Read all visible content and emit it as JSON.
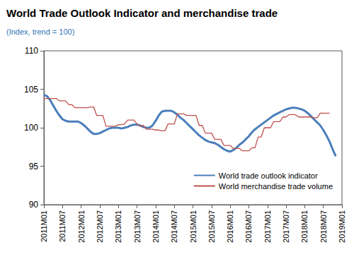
{
  "chart_data": {
    "type": "line",
    "title": "World Trade Outlook Indicator and merchandise trade",
    "subtitle": "(Index, trend = 100)",
    "categories": [
      "2011M01",
      null,
      null,
      null,
      null,
      null,
      "2011M07",
      null,
      null,
      null,
      null,
      null,
      "2012M01",
      null,
      null,
      null,
      null,
      null,
      "2012M07",
      null,
      null,
      null,
      null,
      null,
      "2013M01",
      null,
      null,
      null,
      null,
      null,
      "2013M07",
      null,
      null,
      null,
      null,
      null,
      "2014M01",
      null,
      null,
      null,
      null,
      null,
      "2014M07",
      null,
      null,
      null,
      null,
      null,
      "2015M01",
      null,
      null,
      null,
      null,
      null,
      "2015M07",
      null,
      null,
      null,
      null,
      null,
      "2016M01",
      null,
      null,
      null,
      null,
      null,
      "2016M07",
      null,
      null,
      null,
      null,
      null,
      "2017M01",
      null,
      null,
      null,
      null,
      null,
      "2017M07",
      null,
      null,
      null,
      null,
      null,
      "2018M01",
      null,
      null,
      null,
      null,
      null,
      "2018M07",
      null,
      null,
      null,
      null,
      null,
      "2019M01"
    ],
    "series": [
      {
        "name": "World trade outlook indicator",
        "color": "#4a7ebb",
        "values": [
          104.3,
          104.1,
          103.6,
          102.9,
          102.2,
          101.6,
          101.1,
          100.9,
          100.8,
          100.8,
          100.8,
          100.8,
          100.6,
          100.3,
          99.9,
          99.5,
          99.2,
          99.2,
          99.3,
          99.5,
          99.7,
          99.9,
          100,
          100,
          100,
          99.9,
          100,
          100.1,
          100.3,
          100.4,
          100.4,
          100.3,
          100.1,
          100,
          100,
          100.3,
          100.9,
          101.6,
          102.1,
          102.2,
          102.2,
          102.2,
          102,
          101.7,
          101.3,
          101,
          100.6,
          100.2,
          99.8,
          99.4,
          99,
          98.7,
          98.4,
          98.2,
          98.1,
          98,
          97.8,
          97.5,
          97.2,
          97,
          96.9,
          97.1,
          97.4,
          97.8,
          98.1,
          98.5,
          98.9,
          99.4,
          99.8,
          100.1,
          100.4,
          100.7,
          101,
          101.3,
          101.6,
          101.8,
          102,
          102.2,
          102.4,
          102.5,
          102.6,
          102.6,
          102.5,
          102.4,
          102.2,
          101.9,
          101.5,
          101.1,
          100.7,
          100.3,
          99.7,
          99,
          98.2,
          97.2,
          96.3,
          null,
          null
        ]
      },
      {
        "name": "World merchandise trade volume",
        "color": "#c0504d",
        "values": [
          103.8,
          103.8,
          103.8,
          103.8,
          103.8,
          103.5,
          103.5,
          103.5,
          103,
          103,
          102.6,
          102.6,
          102.6,
          102.6,
          102.6,
          102.7,
          102.7,
          101.6,
          101.6,
          101.6,
          100.2,
          100.2,
          100.2,
          100.2,
          100.4,
          100.4,
          100.5,
          101,
          101,
          101,
          100.5,
          100.2,
          100.3,
          99.8,
          99.8,
          99.8,
          99.7,
          99.7,
          99.6,
          99.6,
          100.5,
          100.5,
          100.5,
          101.8,
          101.8,
          101.8,
          101.6,
          101.6,
          101.6,
          101.6,
          100.3,
          100.3,
          99.3,
          99.3,
          99.3,
          98.5,
          98.5,
          98.5,
          97.7,
          97.7,
          97.7,
          97.3,
          97.3,
          97.3,
          97,
          97,
          97,
          97.4,
          97.4,
          98.8,
          98.8,
          100,
          100,
          100,
          100.8,
          100.8,
          100.8,
          101.4,
          101.4,
          101.7,
          101.7,
          101.7,
          101.4,
          101.4,
          101.4,
          101.4,
          101.4,
          101.3,
          101.3,
          101.9,
          101.9,
          101.9,
          101.9,
          null,
          null,
          null,
          null
        ]
      }
    ],
    "ylim": [
      90,
      110
    ],
    "yticks": [
      90,
      95,
      100,
      105,
      110
    ],
    "grid": false,
    "legend": "lower right"
  }
}
